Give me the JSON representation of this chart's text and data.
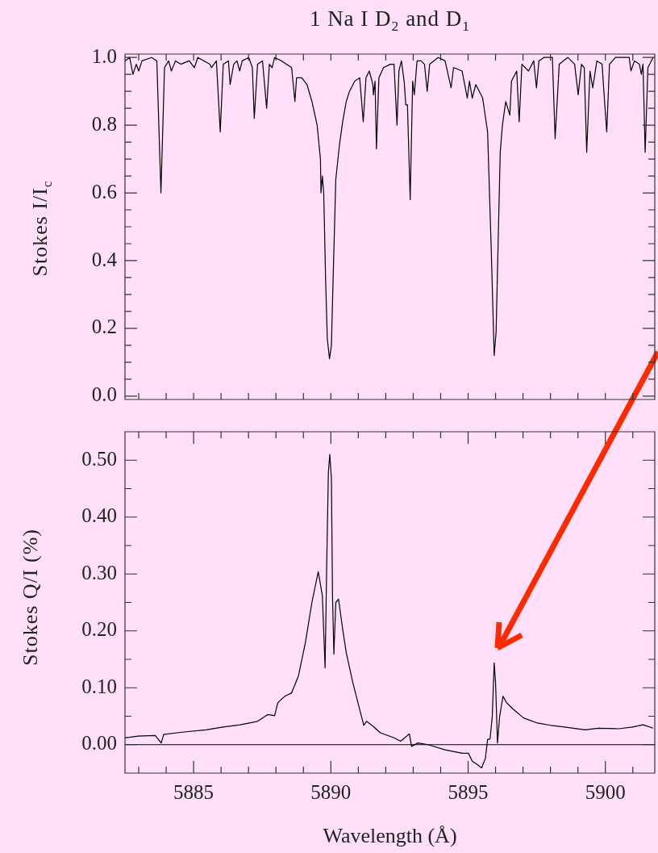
{
  "chart_data": [
    {
      "type": "line",
      "title": "1 Na I D$_{2}$ and D$_{1}$",
      "ylabel": "Stokes I/I$_{c}$",
      "x": [
        5882.5,
        5882.67,
        5882.79,
        5882.91,
        5883.0,
        5883.12,
        5883.47,
        5883.66,
        5883.81,
        5883.94,
        5884.09,
        5884.19,
        5884.34,
        5884.53,
        5884.84,
        5885.03,
        5885.15,
        5885.59,
        5885.65,
        5885.83,
        5885.97,
        5886.08,
        5886.27,
        5886.33,
        5886.46,
        5886.58,
        5886.68,
        5886.77,
        5887.01,
        5887.14,
        5887.21,
        5887.33,
        5887.51,
        5887.66,
        5887.76,
        5887.86,
        5887.95,
        5888.2,
        5888.57,
        5888.69,
        5888.75,
        5888.94,
        5889.13,
        5889.31,
        5889.5,
        5889.62,
        5889.64,
        5889.69,
        5889.74,
        5889.81,
        5889.87,
        5889.95,
        5890.02,
        5890.08,
        5890.18,
        5890.31,
        5890.43,
        5890.56,
        5890.68,
        5890.87,
        5891.05,
        5891.18,
        5891.28,
        5891.4,
        5891.53,
        5891.55,
        5891.61,
        5891.66,
        5891.75,
        5891.92,
        5892.17,
        5892.3,
        5892.41,
        5892.48,
        5892.57,
        5892.67,
        5892.73,
        5892.79,
        5892.89,
        5892.98,
        5893.04,
        5893.14,
        5893.29,
        5893.41,
        5893.51,
        5893.6,
        5893.91,
        5894.16,
        5894.38,
        5894.47,
        5894.78,
        5894.97,
        5895.05,
        5895.15,
        5895.28,
        5895.53,
        5895.71,
        5895.84,
        5895.95,
        5896.02,
        5896.09,
        5896.17,
        5896.25,
        5896.37,
        5896.52,
        5896.58,
        5896.77,
        5896.86,
        5896.96,
        5897.2,
        5897.39,
        5897.49,
        5897.58,
        5897.76,
        5898.07,
        5898.17,
        5898.32,
        5898.63,
        5898.88,
        5899.01,
        5899.13,
        5899.23,
        5899.32,
        5899.44,
        5899.54,
        5899.69,
        5899.88,
        5899.98,
        5900.05,
        5900.15,
        5900.37,
        5900.87,
        5900.93,
        5901.06,
        5901.24,
        5901.31,
        5901.37,
        5901.45,
        5901.55,
        5901.74
      ],
      "series": [
        {
          "color": "#000000",
          "values": [
            0.99,
            1.0,
            0.95,
            0.98,
            0.96,
            0.99,
            1.0,
            0.99,
            0.6,
            0.97,
            0.99,
            0.96,
            0.99,
            0.98,
            0.99,
            0.97,
            1.0,
            0.98,
            0.97,
            0.99,
            0.78,
            0.98,
            0.99,
            0.92,
            0.98,
            0.99,
            0.96,
            0.99,
            1.0,
            0.97,
            0.82,
            0.98,
            0.99,
            0.85,
            0.98,
            0.97,
            1.0,
            0.99,
            0.97,
            0.87,
            0.94,
            0.94,
            0.92,
            0.87,
            0.8,
            0.7,
            0.6,
            0.65,
            0.6,
            0.34,
            0.17,
            0.11,
            0.15,
            0.34,
            0.64,
            0.74,
            0.81,
            0.87,
            0.9,
            0.93,
            0.94,
            0.81,
            0.94,
            0.96,
            0.92,
            0.89,
            0.93,
            0.73,
            0.94,
            0.97,
            0.98,
            0.98,
            0.8,
            0.96,
            0.99,
            0.93,
            0.86,
            0.86,
            0.58,
            0.93,
            0.89,
            0.99,
            0.99,
            0.98,
            0.9,
            0.98,
            1.0,
            0.99,
            0.91,
            0.97,
            0.96,
            0.88,
            0.93,
            0.88,
            0.92,
            0.88,
            0.78,
            0.44,
            0.12,
            0.19,
            0.44,
            0.72,
            0.8,
            0.87,
            0.83,
            0.93,
            0.96,
            0.81,
            0.98,
            0.96,
            0.99,
            0.91,
            0.99,
            1.0,
            1.0,
            0.76,
            0.98,
            1.0,
            0.98,
            0.89,
            0.98,
            0.97,
            0.72,
            0.96,
            0.91,
            0.99,
            0.98,
            0.86,
            0.78,
            0.98,
            1.0,
            1.0,
            0.96,
            0.99,
            0.98,
            0.95,
            0.98,
            0.72,
            0.97,
            1.0
          ]
        }
      ],
      "xlim": [
        5882.5,
        5901.8
      ],
      "ylim": [
        -0.01,
        1.01
      ],
      "xticks": [
        {
          "value": 5883,
          "label": null
        },
        {
          "value": 5884,
          "label": null
        },
        {
          "value": 5885,
          "label": null
        },
        {
          "value": 5886,
          "label": null
        },
        {
          "value": 5887,
          "label": null
        },
        {
          "value": 5888,
          "label": null
        },
        {
          "value": 5889,
          "label": null
        },
        {
          "value": 5890,
          "label": null
        },
        {
          "value": 5891,
          "label": null
        },
        {
          "value": 5892,
          "label": null
        },
        {
          "value": 5893,
          "label": null
        },
        {
          "value": 5894,
          "label": null
        },
        {
          "value": 5895,
          "label": null
        },
        {
          "value": 5896,
          "label": null
        },
        {
          "value": 5897,
          "label": null
        },
        {
          "value": 5898,
          "label": null
        },
        {
          "value": 5899,
          "label": null
        },
        {
          "value": 5900,
          "label": null
        },
        {
          "value": 5901,
          "label": null
        }
      ],
      "yticks": [
        {
          "value": 0,
          "label": "0.0"
        },
        {
          "value": 0.05,
          "label": null
        },
        {
          "value": 0.1,
          "label": null
        },
        {
          "value": 0.15,
          "label": null
        },
        {
          "value": 0.2,
          "label": "0.2"
        },
        {
          "value": 0.25,
          "label": null
        },
        {
          "value": 0.3,
          "label": null
        },
        {
          "value": 0.35,
          "label": null
        },
        {
          "value": 0.4,
          "label": "0.4"
        },
        {
          "value": 0.45,
          "label": null
        },
        {
          "value": 0.5,
          "label": null
        },
        {
          "value": 0.55,
          "label": null
        },
        {
          "value": 0.6,
          "label": "0.6"
        },
        {
          "value": 0.65,
          "label": null
        },
        {
          "value": 0.7,
          "label": null
        },
        {
          "value": 0.75,
          "label": null
        },
        {
          "value": 0.8,
          "label": "0.8"
        },
        {
          "value": 0.85,
          "label": null
        },
        {
          "value": 0.9,
          "label": null
        },
        {
          "value": 0.95,
          "label": null
        },
        {
          "value": 1,
          "label": "1.0"
        }
      ],
      "tick_labels": "y",
      "grid": false
    },
    {
      "type": "line",
      "xlabel": "Wavelength (Å)",
      "ylabel": "Stokes Q/I (%)",
      "x": [
        5882.5,
        5882.98,
        5883.6,
        5883.82,
        5883.91,
        5884.59,
        5885.46,
        5886.08,
        5886.7,
        5887.33,
        5887.7,
        5887.95,
        5888.07,
        5888.32,
        5888.57,
        5888.82,
        5889.07,
        5889.31,
        5889.54,
        5889.69,
        5889.79,
        5889.85,
        5889.91,
        5889.96,
        5890.02,
        5890.06,
        5890.11,
        5890.18,
        5890.28,
        5890.43,
        5890.56,
        5890.8,
        5891.05,
        5891.2,
        5891.3,
        5891.55,
        5891.8,
        5892.3,
        5892.54,
        5892.86,
        5892.94,
        5893.17,
        5893.54,
        5894.16,
        5894.78,
        5895.01,
        5895.15,
        5895.34,
        5895.49,
        5895.63,
        5895.71,
        5895.8,
        5895.88,
        5895.95,
        5896.0,
        5896.07,
        5896.15,
        5896.27,
        5896.4,
        5896.65,
        5897.02,
        5897.52,
        5898.01,
        5898.51,
        5899.26,
        5899.75,
        5900.5,
        5900.99,
        5901.37,
        5901.74
      ],
      "series": [
        {
          "color": "#000000",
          "values": [
            0.012,
            0.015,
            0.016,
            0.003,
            0.018,
            0.022,
            0.026,
            0.031,
            0.035,
            0.041,
            0.053,
            0.051,
            0.074,
            0.085,
            0.091,
            0.121,
            0.179,
            0.25,
            0.304,
            0.262,
            0.135,
            0.321,
            0.479,
            0.51,
            0.468,
            0.262,
            0.159,
            0.25,
            0.256,
            0.203,
            0.162,
            0.109,
            0.062,
            0.034,
            0.041,
            0.032,
            0.021,
            0.012,
            0.006,
            0.019,
            -0.003,
            0.003,
            0.0,
            -0.009,
            -0.015,
            -0.015,
            -0.029,
            -0.035,
            -0.041,
            -0.024,
            0.009,
            0.01,
            0.05,
            0.144,
            0.109,
            0.003,
            0.05,
            0.085,
            0.074,
            0.062,
            0.047,
            0.038,
            0.034,
            0.031,
            0.026,
            0.029,
            0.028,
            0.031,
            0.035,
            0.029
          ]
        }
      ],
      "xlim": [
        5882.5,
        5901.8
      ],
      "ylim": [
        -0.05,
        0.55
      ],
      "xticks": [
        {
          "value": 5883,
          "label": null
        },
        {
          "value": 5884,
          "label": null
        },
        {
          "value": 5885,
          "label": "5885"
        },
        {
          "value": 5886,
          "label": null
        },
        {
          "value": 5887,
          "label": null
        },
        {
          "value": 5888,
          "label": null
        },
        {
          "value": 5889,
          "label": null
        },
        {
          "value": 5890,
          "label": "5890"
        },
        {
          "value": 5891,
          "label": null
        },
        {
          "value": 5892,
          "label": null
        },
        {
          "value": 5893,
          "label": null
        },
        {
          "value": 5894,
          "label": null
        },
        {
          "value": 5895,
          "label": "5895"
        },
        {
          "value": 5896,
          "label": null
        },
        {
          "value": 5897,
          "label": null
        },
        {
          "value": 5898,
          "label": null
        },
        {
          "value": 5899,
          "label": null
        },
        {
          "value": 5900,
          "label": "5900"
        },
        {
          "value": 5901,
          "label": null
        }
      ],
      "yticks": [
        {
          "value": 0,
          "label": "0.00"
        },
        {
          "value": 0.05,
          "label": null
        },
        {
          "value": 0.1,
          "label": "0.10"
        },
        {
          "value": 0.15,
          "label": null
        },
        {
          "value": 0.2,
          "label": "0.20"
        },
        {
          "value": 0.25,
          "label": null
        },
        {
          "value": 0.3,
          "label": "0.30"
        },
        {
          "value": 0.35,
          "label": null
        },
        {
          "value": 0.4,
          "label": "0.40"
        },
        {
          "value": 0.45,
          "label": null
        },
        {
          "value": 0.5,
          "label": "0.50"
        }
      ],
      "ref_lines": [
        {
          "axis": "y",
          "value": 0,
          "color": "#000000"
        }
      ],
      "grid": false
    }
  ]
}
